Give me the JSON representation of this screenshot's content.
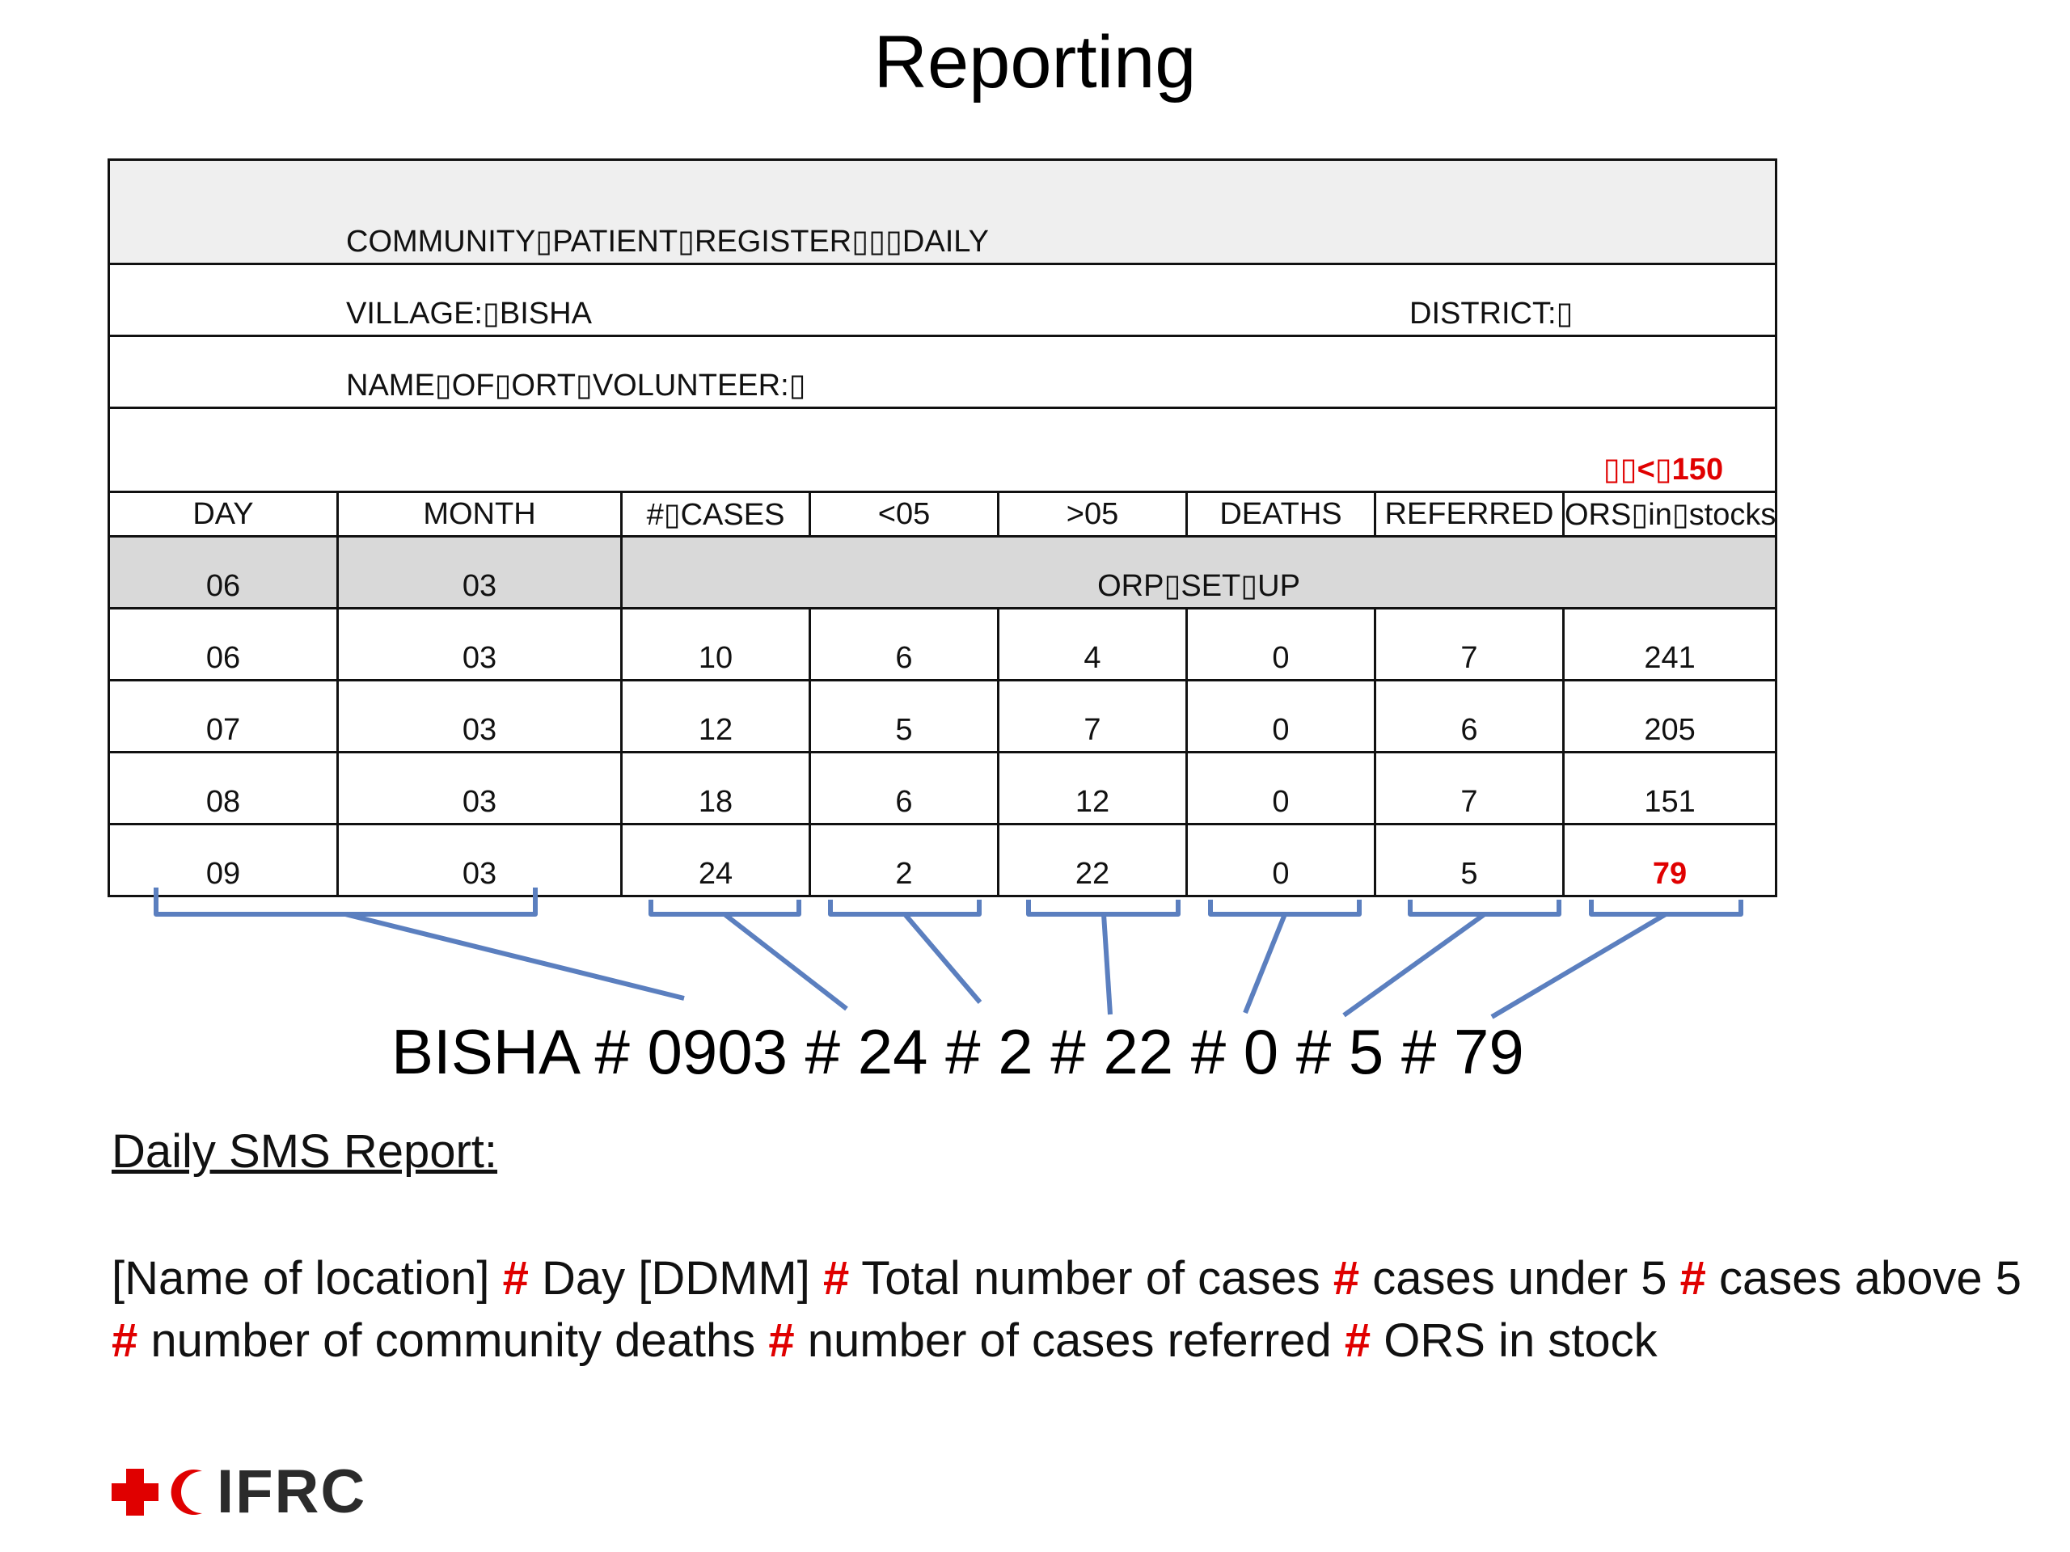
{
  "title": "Reporting",
  "register": {
    "title": "COMMUNITY▯PATIENT▯REGISTER▯▯▯DAILY",
    "village": "VILLAGE:▯BISHA",
    "district": "DISTRICT:▯",
    "volunteer": "NAME▯OF▯ORT▯VOLUNTEER:▯",
    "threshold": "▯▯<▯150",
    "columns": [
      "DAY",
      "MONTH",
      "#▯CASES",
      "<05",
      ">05",
      "DEATHS",
      "REFERRED",
      "ORS▯in▯stocks"
    ],
    "setup_row": {
      "day": "06",
      "month": "03",
      "label": "ORP▯SET▯UP"
    },
    "rows": [
      [
        "06",
        "03",
        "10",
        "6",
        "4",
        "0",
        "7",
        "241"
      ],
      [
        "07",
        "03",
        "12",
        "5",
        "7",
        "0",
        "6",
        "205"
      ],
      [
        "08",
        "03",
        "18",
        "6",
        "12",
        "0",
        "7",
        "151"
      ],
      [
        "09",
        "03",
        "24",
        "2",
        "22",
        "0",
        "5",
        "79"
      ]
    ]
  },
  "sms_example": "BISHA # 0903 # 24 # 2 # 22 # 0 # 5 # 79",
  "daily_heading": "Daily SMS Report:",
  "format": {
    "parts": [
      "[Name of location] ",
      " Day [DDMM] ",
      " Total number of cases ",
      " cases under 5 ",
      " cases above 5 ",
      " number of community deaths ",
      " number of cases referred ",
      " ORS in stock"
    ],
    "separator": "#"
  },
  "logo": {
    "text": "IFRC"
  },
  "colors": {
    "accent_red": "#e00000",
    "bracket_blue": "#5b7fbf",
    "header_gray": "#efefef",
    "setup_gray": "#d9d9d9"
  }
}
